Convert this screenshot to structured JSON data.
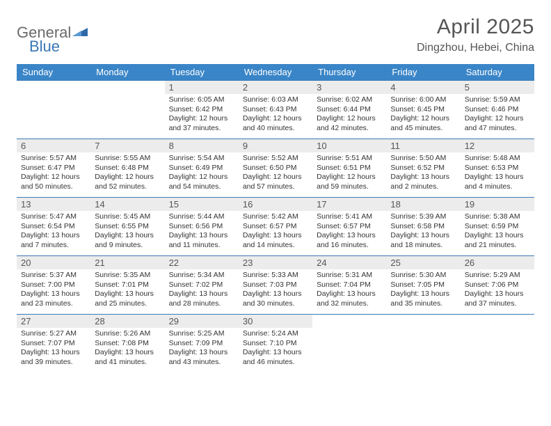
{
  "brand": {
    "text1": "General",
    "text2": "Blue"
  },
  "title": "April 2025",
  "location": "Dingzhou, Hebei, China",
  "colors": {
    "header_bg": "#3a85c7",
    "header_text": "#ffffff",
    "row_border": "#3a78b5",
    "daynum_bg": "#ececec",
    "body_text": "#333333",
    "brand_gray": "#6a6a6a",
    "brand_blue": "#3a78b5"
  },
  "weekdays": [
    "Sunday",
    "Monday",
    "Tuesday",
    "Wednesday",
    "Thursday",
    "Friday",
    "Saturday"
  ],
  "weeks": [
    [
      {
        "n": "",
        "empty": true
      },
      {
        "n": "",
        "empty": true
      },
      {
        "n": "1",
        "sunrise": "6:05 AM",
        "sunset": "6:42 PM",
        "day_h": 12,
        "day_m": 37
      },
      {
        "n": "2",
        "sunrise": "6:03 AM",
        "sunset": "6:43 PM",
        "day_h": 12,
        "day_m": 40
      },
      {
        "n": "3",
        "sunrise": "6:02 AM",
        "sunset": "6:44 PM",
        "day_h": 12,
        "day_m": 42
      },
      {
        "n": "4",
        "sunrise": "6:00 AM",
        "sunset": "6:45 PM",
        "day_h": 12,
        "day_m": 45
      },
      {
        "n": "5",
        "sunrise": "5:59 AM",
        "sunset": "6:46 PM",
        "day_h": 12,
        "day_m": 47
      }
    ],
    [
      {
        "n": "6",
        "sunrise": "5:57 AM",
        "sunset": "6:47 PM",
        "day_h": 12,
        "day_m": 50
      },
      {
        "n": "7",
        "sunrise": "5:55 AM",
        "sunset": "6:48 PM",
        "day_h": 12,
        "day_m": 52
      },
      {
        "n": "8",
        "sunrise": "5:54 AM",
        "sunset": "6:49 PM",
        "day_h": 12,
        "day_m": 54
      },
      {
        "n": "9",
        "sunrise": "5:52 AM",
        "sunset": "6:50 PM",
        "day_h": 12,
        "day_m": 57
      },
      {
        "n": "10",
        "sunrise": "5:51 AM",
        "sunset": "6:51 PM",
        "day_h": 12,
        "day_m": 59
      },
      {
        "n": "11",
        "sunrise": "5:50 AM",
        "sunset": "6:52 PM",
        "day_h": 13,
        "day_m": 2
      },
      {
        "n": "12",
        "sunrise": "5:48 AM",
        "sunset": "6:53 PM",
        "day_h": 13,
        "day_m": 4
      }
    ],
    [
      {
        "n": "13",
        "sunrise": "5:47 AM",
        "sunset": "6:54 PM",
        "day_h": 13,
        "day_m": 7
      },
      {
        "n": "14",
        "sunrise": "5:45 AM",
        "sunset": "6:55 PM",
        "day_h": 13,
        "day_m": 9
      },
      {
        "n": "15",
        "sunrise": "5:44 AM",
        "sunset": "6:56 PM",
        "day_h": 13,
        "day_m": 11
      },
      {
        "n": "16",
        "sunrise": "5:42 AM",
        "sunset": "6:57 PM",
        "day_h": 13,
        "day_m": 14
      },
      {
        "n": "17",
        "sunrise": "5:41 AM",
        "sunset": "6:57 PM",
        "day_h": 13,
        "day_m": 16
      },
      {
        "n": "18",
        "sunrise": "5:39 AM",
        "sunset": "6:58 PM",
        "day_h": 13,
        "day_m": 18
      },
      {
        "n": "19",
        "sunrise": "5:38 AM",
        "sunset": "6:59 PM",
        "day_h": 13,
        "day_m": 21
      }
    ],
    [
      {
        "n": "20",
        "sunrise": "5:37 AM",
        "sunset": "7:00 PM",
        "day_h": 13,
        "day_m": 23
      },
      {
        "n": "21",
        "sunrise": "5:35 AM",
        "sunset": "7:01 PM",
        "day_h": 13,
        "day_m": 25
      },
      {
        "n": "22",
        "sunrise": "5:34 AM",
        "sunset": "7:02 PM",
        "day_h": 13,
        "day_m": 28
      },
      {
        "n": "23",
        "sunrise": "5:33 AM",
        "sunset": "7:03 PM",
        "day_h": 13,
        "day_m": 30
      },
      {
        "n": "24",
        "sunrise": "5:31 AM",
        "sunset": "7:04 PM",
        "day_h": 13,
        "day_m": 32
      },
      {
        "n": "25",
        "sunrise": "5:30 AM",
        "sunset": "7:05 PM",
        "day_h": 13,
        "day_m": 35
      },
      {
        "n": "26",
        "sunrise": "5:29 AM",
        "sunset": "7:06 PM",
        "day_h": 13,
        "day_m": 37
      }
    ],
    [
      {
        "n": "27",
        "sunrise": "5:27 AM",
        "sunset": "7:07 PM",
        "day_h": 13,
        "day_m": 39
      },
      {
        "n": "28",
        "sunrise": "5:26 AM",
        "sunset": "7:08 PM",
        "day_h": 13,
        "day_m": 41
      },
      {
        "n": "29",
        "sunrise": "5:25 AM",
        "sunset": "7:09 PM",
        "day_h": 13,
        "day_m": 43
      },
      {
        "n": "30",
        "sunrise": "5:24 AM",
        "sunset": "7:10 PM",
        "day_h": 13,
        "day_m": 46
      },
      {
        "n": "",
        "empty": true
      },
      {
        "n": "",
        "empty": true
      },
      {
        "n": "",
        "empty": true
      }
    ]
  ],
  "labels": {
    "sunrise": "Sunrise: ",
    "sunset": "Sunset: ",
    "daylight_prefix": "Daylight: ",
    "hours_word": " hours",
    "and_word": "and ",
    "minutes_word": " minutes."
  }
}
